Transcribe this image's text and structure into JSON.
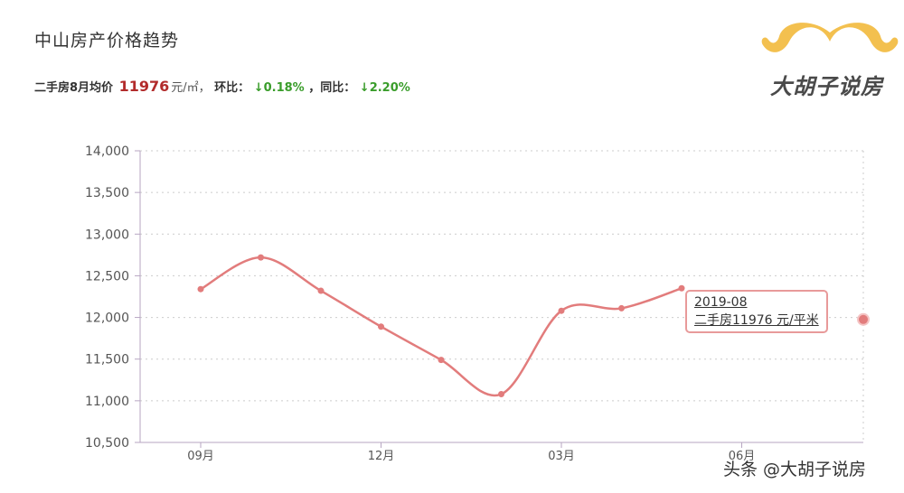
{
  "header": {
    "title": "中山房产价格趋势",
    "summary": {
      "prefix": "二手房8月均价",
      "price": "11976",
      "unit": "元/㎡，",
      "mom_label": "环比：",
      "mom_value": "↓0.18%",
      "yoy_label": "，同比：",
      "yoy_value": "↓2.20%"
    }
  },
  "logo": {
    "text": "大胡子说房",
    "name": "mustache-logo"
  },
  "watermark": "头条 @大胡子说房",
  "tooltip": {
    "date": "2019-08",
    "text": "二手房11976 元/平米"
  },
  "colors": {
    "line": "#e27c7c",
    "point": "#e27c7c",
    "axis": "#b7a6c2",
    "grid": "#cccccc",
    "mustache": "#f3c04f"
  },
  "chart_data": {
    "type": "line",
    "title": "",
    "xlabel": "",
    "ylabel": "",
    "ylim": [
      10500,
      14000
    ],
    "yticks": [
      10500,
      11000,
      11500,
      12000,
      12500,
      13000,
      13500,
      14000
    ],
    "ytick_labels": [
      "10,500",
      "11,000",
      "11,500",
      "12,000",
      "12,500",
      "13,000",
      "13,500",
      "14,000"
    ],
    "xticks": [
      "09月",
      "12月",
      "03月",
      "06月"
    ],
    "x": [
      "2018-09",
      "2018-10",
      "2018-11",
      "2018-12",
      "2019-01",
      "2019-02",
      "2019-03",
      "2019-04",
      "2019-05",
      "2019-06",
      "2019-07",
      "2019-08"
    ],
    "series": [
      {
        "values": [
          12340,
          12720,
          12320,
          11890,
          11490,
          11080,
          12080,
          12110,
          12350,
          null,
          null,
          11976
        ]
      }
    ],
    "grid": true,
    "highlighted_point": "2019-08"
  }
}
